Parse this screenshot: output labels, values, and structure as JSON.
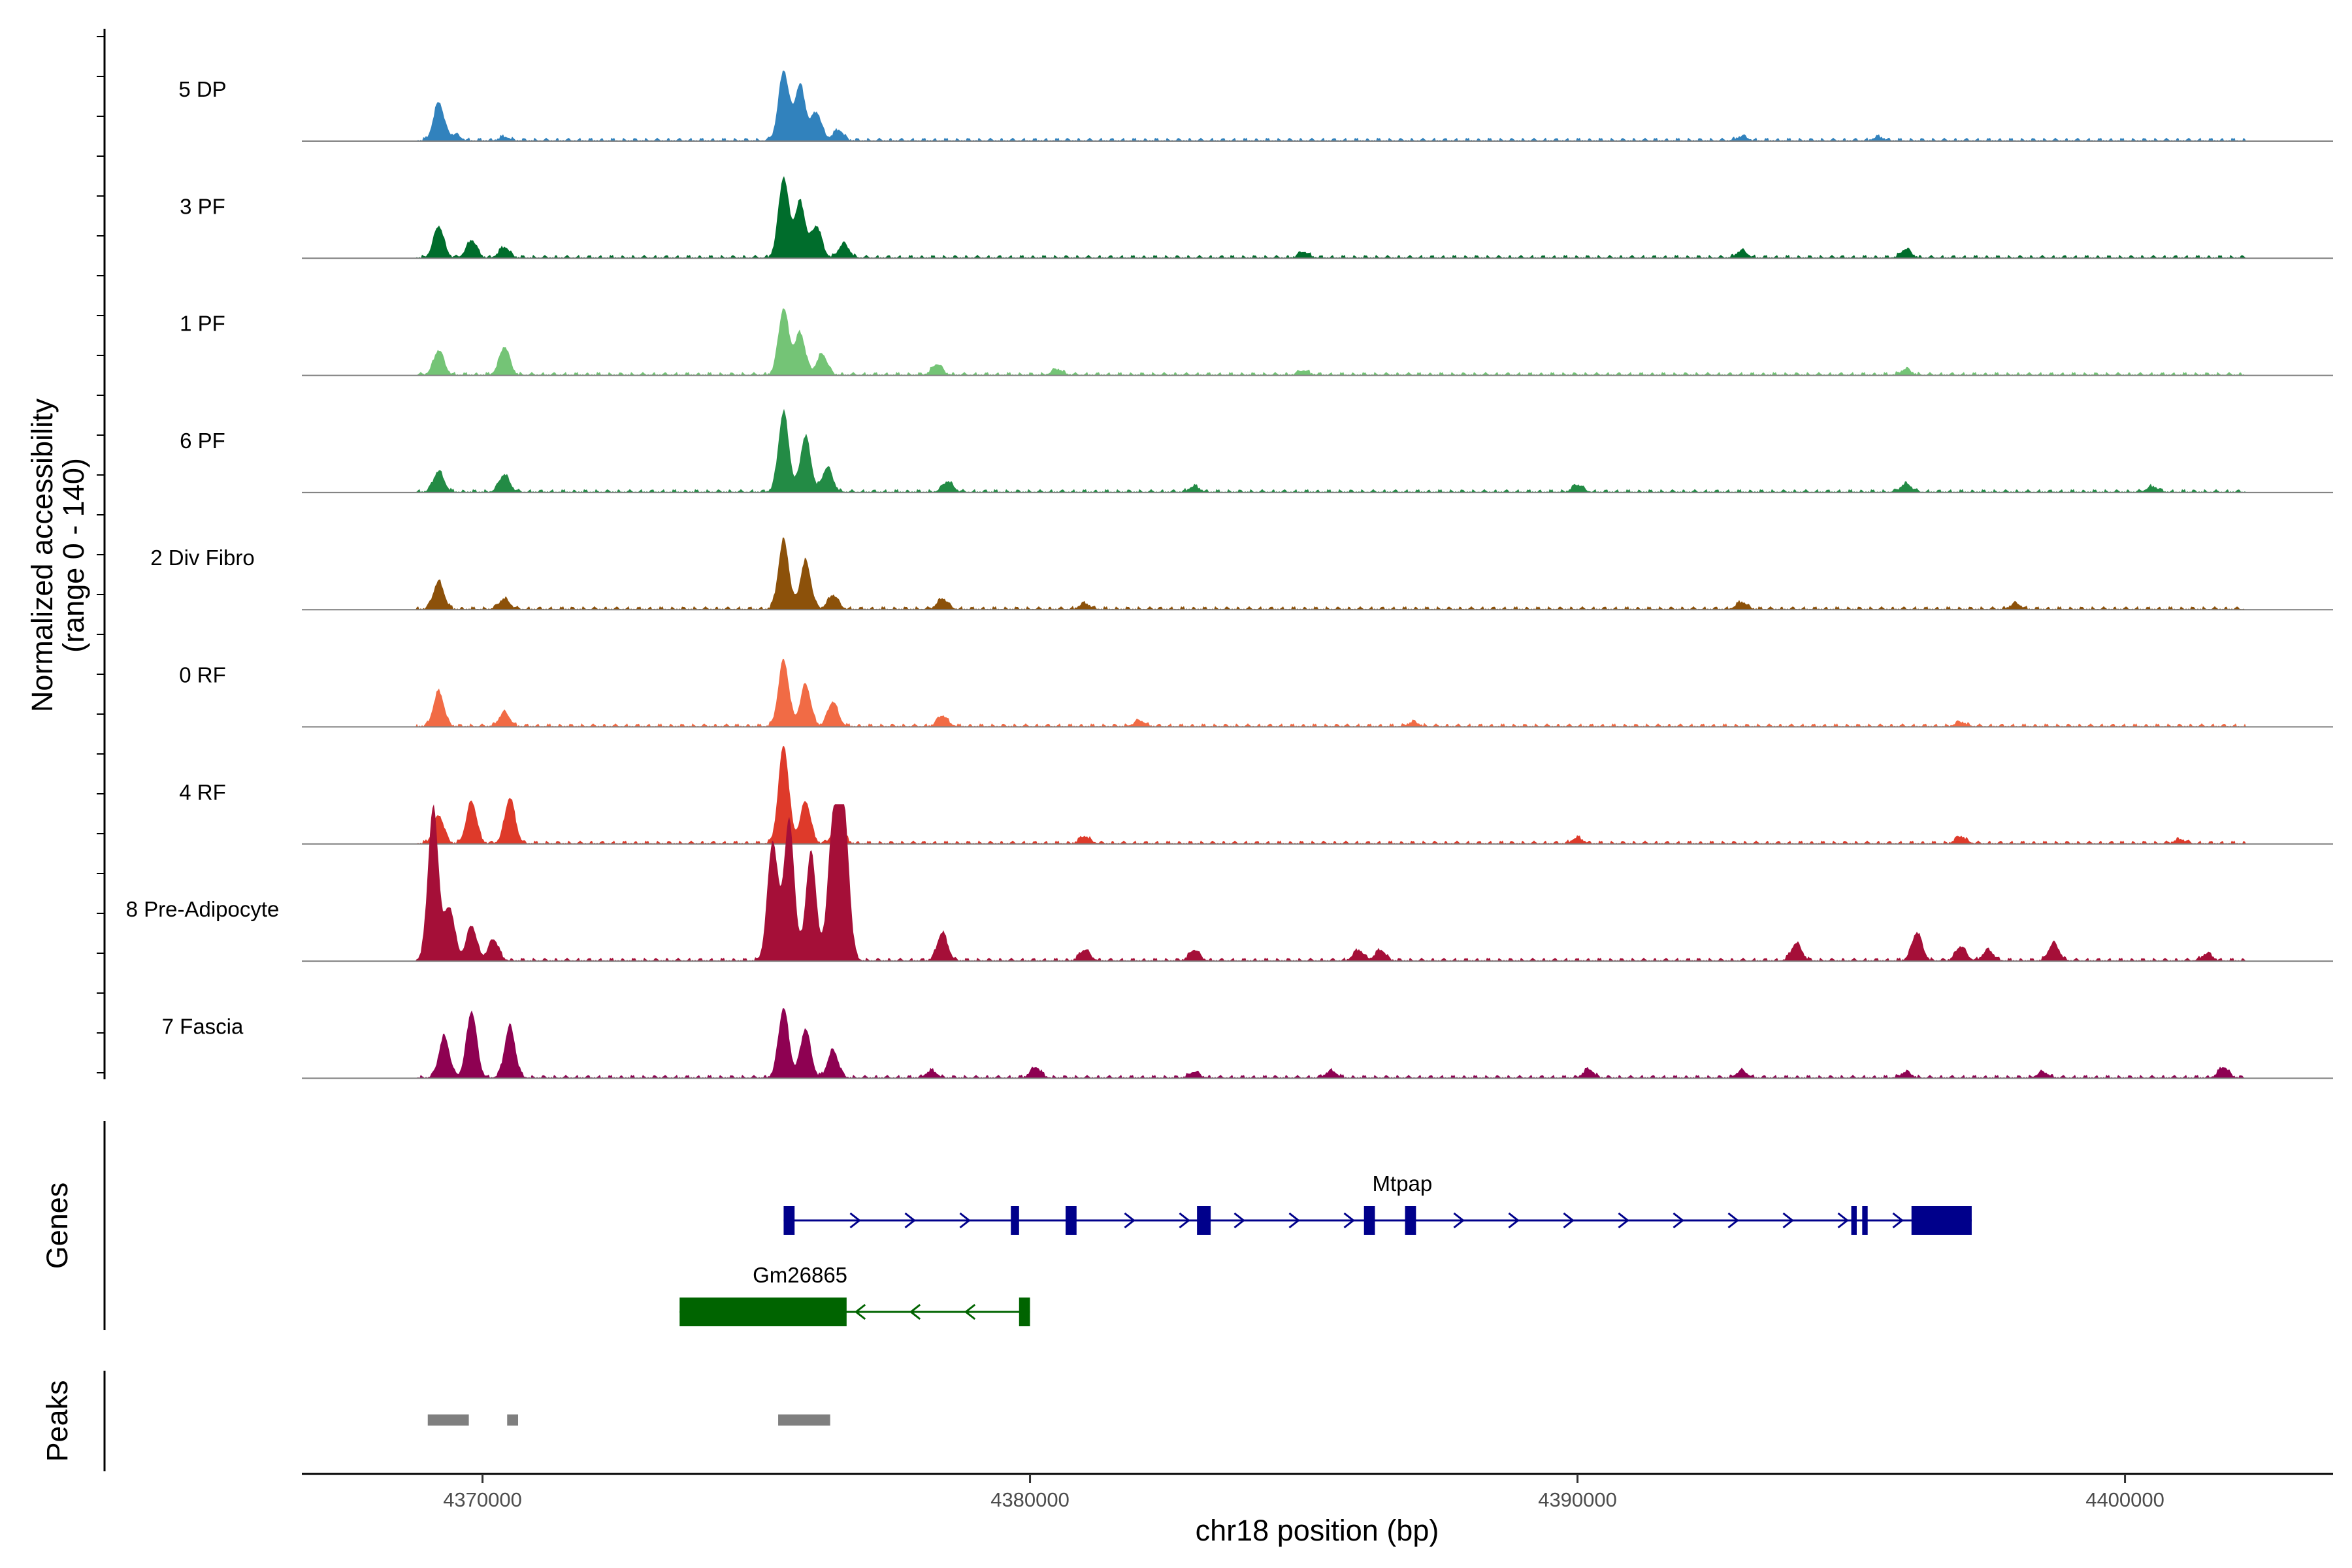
{
  "chart_data": {
    "type": "area",
    "title": "",
    "chromosome": "chr18",
    "xlabel": "chr18 position (bp)",
    "ylabel": [
      "Normalized accessibility",
      "(range 0 - 140)"
    ],
    "y_range": [
      0,
      140
    ],
    "x_range": [
      4366700,
      4403800
    ],
    "x_ticks": [
      {
        "value": 4370000,
        "label": "4370000"
      },
      {
        "value": 4380000,
        "label": "4380000"
      },
      {
        "value": 4390000,
        "label": "4390000"
      },
      {
        "value": 4400000,
        "label": "4400000"
      }
    ],
    "tracks": [
      {
        "name": "5 DP",
        "color": "#3182bd",
        "peaks": [
          [
            4369200,
            55
          ],
          [
            4369500,
            8
          ],
          [
            4370400,
            5
          ],
          [
            4375500,
            100
          ],
          [
            4375800,
            80
          ],
          [
            4376100,
            40
          ],
          [
            4376500,
            15
          ],
          [
            4393000,
            6
          ],
          [
            4395500,
            5
          ]
        ]
      },
      {
        "name": "3 PF",
        "color": "#006d2c",
        "peaks": [
          [
            4369200,
            45
          ],
          [
            4369800,
            25
          ],
          [
            4370400,
            15
          ],
          [
            4375500,
            115
          ],
          [
            4375800,
            80
          ],
          [
            4376100,
            45
          ],
          [
            4376600,
            20
          ],
          [
            4385000,
            8
          ],
          [
            4393000,
            10
          ],
          [
            4396000,
            12
          ]
        ]
      },
      {
        "name": "1 PF",
        "color": "#74c476",
        "peaks": [
          [
            4369200,
            35
          ],
          [
            4370400,
            40
          ],
          [
            4375500,
            95
          ],
          [
            4375800,
            60
          ],
          [
            4376200,
            30
          ],
          [
            4378300,
            15
          ],
          [
            4380500,
            8
          ],
          [
            4385000,
            6
          ],
          [
            4396000,
            8
          ]
        ]
      },
      {
        "name": "6 PF",
        "color": "#238b45",
        "peaks": [
          [
            4369200,
            30
          ],
          [
            4370400,
            25
          ],
          [
            4375500,
            115
          ],
          [
            4375900,
            80
          ],
          [
            4376300,
            35
          ],
          [
            4378500,
            15
          ],
          [
            4383000,
            8
          ],
          [
            4390000,
            10
          ],
          [
            4396000,
            12
          ],
          [
            4400500,
            8
          ]
        ]
      },
      {
        "name": "2 Div Fibro",
        "color": "#8c510a",
        "peaks": [
          [
            4369200,
            40
          ],
          [
            4370400,
            15
          ],
          [
            4375500,
            100
          ],
          [
            4375900,
            70
          ],
          [
            4376400,
            20
          ],
          [
            4378400,
            15
          ],
          [
            4381000,
            8
          ],
          [
            4393000,
            10
          ],
          [
            4398000,
            8
          ]
        ]
      },
      {
        "name": "0 RF",
        "color": "#f16b45",
        "peaks": [
          [
            4369200,
            50
          ],
          [
            4370400,
            20
          ],
          [
            4375500,
            95
          ],
          [
            4375900,
            60
          ],
          [
            4376400,
            35
          ],
          [
            4378400,
            15
          ],
          [
            4382000,
            8
          ],
          [
            4387000,
            6
          ],
          [
            4397000,
            6
          ]
        ]
      },
      {
        "name": "4 RF",
        "color": "#de3a2a",
        "peaks": [
          [
            4369200,
            40
          ],
          [
            4369800,
            60
          ],
          [
            4370500,
            65
          ],
          [
            4375500,
            140
          ],
          [
            4375900,
            60
          ],
          [
            4376500,
            35
          ],
          [
            4381000,
            10
          ],
          [
            4390000,
            8
          ],
          [
            4397000,
            10
          ],
          [
            4401000,
            6
          ]
        ]
      },
      {
        "name": "8 Pre-Adipocyte",
        "color": "#a50f38",
        "peaks": [
          [
            4369100,
            220
          ],
          [
            4369400,
            75
          ],
          [
            4369800,
            50
          ],
          [
            4370200,
            30
          ],
          [
            4375300,
            170
          ],
          [
            4375600,
            200
          ],
          [
            4376000,
            155
          ],
          [
            4376400,
            190
          ],
          [
            4376600,
            210
          ],
          [
            4378400,
            40
          ],
          [
            4381000,
            15
          ],
          [
            4383000,
            15
          ],
          [
            4386000,
            15
          ],
          [
            4386400,
            15
          ],
          [
            4394000,
            25
          ],
          [
            4396200,
            40
          ],
          [
            4397000,
            20
          ],
          [
            4397500,
            15
          ],
          [
            4398700,
            25
          ],
          [
            4401500,
            10
          ]
        ]
      },
      {
        "name": "7 Fascia",
        "color": "#8e0152",
        "peaks": [
          [
            4369300,
            60
          ],
          [
            4369800,
            95
          ],
          [
            4370500,
            75
          ],
          [
            4375500,
            100
          ],
          [
            4375900,
            70
          ],
          [
            4376400,
            40
          ],
          [
            4378200,
            10
          ],
          [
            4380100,
            15
          ],
          [
            4383000,
            8
          ],
          [
            4385500,
            10
          ],
          [
            4390200,
            12
          ],
          [
            4393000,
            10
          ],
          [
            4396000,
            8
          ],
          [
            4398500,
            8
          ],
          [
            4401800,
            15
          ]
        ]
      }
    ],
    "genes": [
      {
        "name": "Mtpap",
        "strand": "+",
        "color": "#00008b",
        "start": 4375500,
        "end": 4397200,
        "exons": [
          [
            4375500,
            4375700
          ],
          [
            4379650,
            4379800
          ],
          [
            4380650,
            4380850
          ],
          [
            4383050,
            4383300
          ],
          [
            4386100,
            4386300
          ],
          [
            4386850,
            4387050
          ],
          [
            4395000,
            4395100
          ],
          [
            4395200,
            4395300
          ],
          [
            4396100,
            4397200
          ]
        ]
      },
      {
        "name": "Gm26865",
        "strand": "-",
        "color": "#006400",
        "start": 4373600,
        "end": 4380000,
        "exons": [
          [
            4373600,
            4376650
          ],
          [
            4379800,
            4380000
          ]
        ]
      }
    ],
    "peaks_track": [
      [
        4369000,
        4369750
      ],
      [
        4370450,
        4370650
      ],
      [
        4375400,
        4376350
      ]
    ],
    "panel_labels": {
      "genes": "Genes",
      "peaks": "Peaks"
    }
  }
}
